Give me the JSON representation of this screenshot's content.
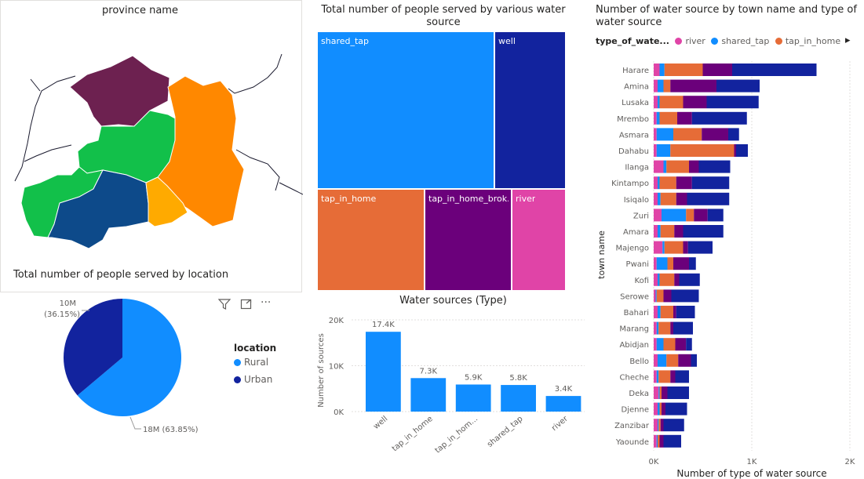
{
  "map": {
    "title": "province name",
    "colors": [
      "#6d2150",
      "#ff8800",
      "#12c04a",
      "#12c04a",
      "#0d4a8a",
      "#ffaa00"
    ]
  },
  "location_panel": {
    "title": "Total number of people served by location",
    "toolbar_icons": [
      "filter-icon",
      "focus-mode-icon",
      "more-options-icon"
    ],
    "more_glyph": "···"
  },
  "treemap_panel": {
    "title_line1": "Total number of people served by various water",
    "title_line2": "source"
  },
  "bar_panel": {
    "title": "Water sources (Type)"
  },
  "stacked_panel": {
    "title_line1": "Number of water source by town name and type of",
    "title_line2": "water source",
    "legend_title": "type_of_wate...",
    "legend_items": [
      "river",
      "shared_tap",
      "tap_in_home"
    ],
    "next_arrow": "▸"
  },
  "colors": {
    "river": "#e044a7",
    "shared_tap": "#118dff",
    "tap_in_home": "#e66c37",
    "tap_in_home_broken": "#6b007b",
    "well": "#12239e",
    "rural": "#118dff",
    "urban": "#12239e"
  },
  "chart_data": [
    {
      "type": "pie",
      "legend_title": "location",
      "labels": [
        "Rural",
        "Urban"
      ],
      "values": [
        18,
        10
      ],
      "data_labels": [
        "18M (63.85%)",
        "10M (36.15%)"
      ],
      "percent": [
        63.85,
        36.15
      ]
    },
    {
      "type": "treemap",
      "labels": [
        "shared_tap",
        "well",
        "tap_in_home",
        "tap_in_home_brok...",
        "river"
      ]
    },
    {
      "type": "bar",
      "categories": [
        "well",
        "tap_in_home",
        "tap_in_hom...",
        "shared_tap",
        "river"
      ],
      "values": [
        17400,
        7300,
        5900,
        5800,
        3400
      ],
      "data_labels": [
        "17.4K",
        "7.3K",
        "5.9K",
        "5.8K",
        "3.4K"
      ],
      "ylabel": "Number of sources",
      "yticks": [
        "0K",
        "10K",
        "20K"
      ],
      "ylim": [
        0,
        20000
      ],
      "grid": true
    },
    {
      "type": "bar",
      "orientation": "horizontal-stacked",
      "xlabel": "Number of type of water source",
      "ylabel": "town name",
      "xticks": [
        "0K",
        "1K",
        "2K"
      ],
      "xlim": [
        0,
        2000
      ],
      "categories": [
        "Harare",
        "Amina",
        "Lusaka",
        "Mrembo",
        "Asmara",
        "Dahabu",
        "Ilanga",
        "Kintampo",
        "Isiqalo",
        "Zuri",
        "Amara",
        "Majengo",
        "Pwani",
        "Kofi",
        "Serowe",
        "Bahari",
        "Marang",
        "Abidjan",
        "Bello",
        "Cheche",
        "Deka",
        "Djenne",
        "Zanzibar",
        "Yaounde"
      ],
      "series": [
        {
          "name": "river",
          "values": [
            60,
            40,
            40,
            30,
            30,
            30,
            100,
            40,
            40,
            80,
            40,
            90,
            30,
            40,
            20,
            40,
            30,
            30,
            40,
            30,
            50,
            40,
            40,
            30
          ]
        },
        {
          "name": "shared_tap",
          "values": [
            50,
            60,
            20,
            30,
            170,
            140,
            30,
            20,
            30,
            250,
            30,
            20,
            110,
            20,
            10,
            30,
            20,
            70,
            90,
            20,
            10,
            20,
            10,
            10
          ]
        },
        {
          "name": "tap_in_home",
          "values": [
            390,
            70,
            240,
            180,
            290,
            650,
            230,
            170,
            160,
            80,
            140,
            190,
            60,
            150,
            70,
            130,
            120,
            120,
            120,
            120,
            20,
            20,
            20,
            20
          ]
        },
        {
          "name": "tap_in_home_broken",
          "values": [
            300,
            470,
            240,
            150,
            270,
            20,
            100,
            160,
            110,
            140,
            90,
            50,
            160,
            50,
            80,
            30,
            30,
            110,
            130,
            50,
            60,
            40,
            30,
            40
          ]
        },
        {
          "name": "well",
          "values": [
            860,
            440,
            530,
            560,
            110,
            120,
            320,
            380,
            430,
            160,
            410,
            250,
            70,
            210,
            280,
            190,
            200,
            60,
            60,
            140,
            220,
            220,
            210,
            180
          ]
        }
      ]
    }
  ]
}
